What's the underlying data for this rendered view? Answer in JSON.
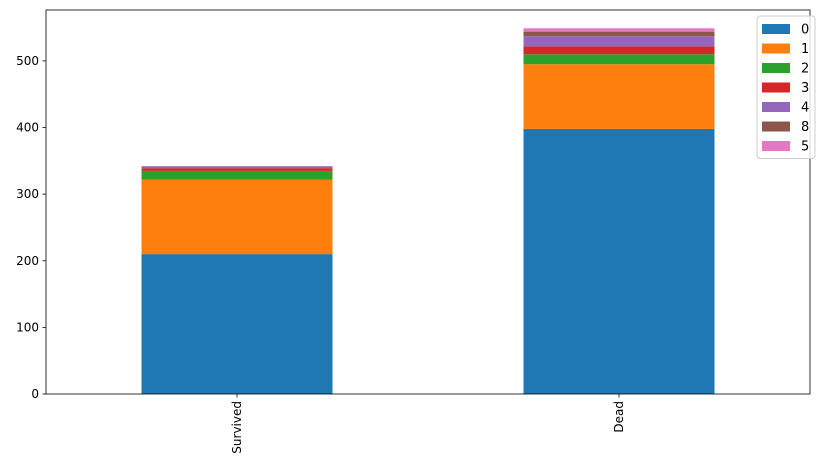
{
  "chart_data": {
    "type": "bar",
    "stacked": true,
    "title": "",
    "xlabel": "",
    "ylabel": "",
    "categories": [
      "Survived",
      "Dead"
    ],
    "ylim": [
      0,
      576.45
    ],
    "yticks": [
      0,
      100,
      200,
      300,
      400,
      500
    ],
    "grid": false,
    "legend_position": "top-right",
    "series": [
      {
        "name": "0",
        "color": "#1f77b4",
        "values": [
          210,
          398
        ]
      },
      {
        "name": "1",
        "color": "#ff7f0e",
        "values": [
          112,
          97
        ]
      },
      {
        "name": "2",
        "color": "#2ca02c",
        "values": [
          13,
          15
        ]
      },
      {
        "name": "3",
        "color": "#d62728",
        "values": [
          4,
          12
        ]
      },
      {
        "name": "4",
        "color": "#9467bd",
        "values": [
          3,
          15
        ]
      },
      {
        "name": "8",
        "color": "#8c564b",
        "values": [
          0,
          7
        ]
      },
      {
        "name": "5",
        "color": "#e377c2",
        "values": [
          0,
          5
        ]
      }
    ]
  }
}
